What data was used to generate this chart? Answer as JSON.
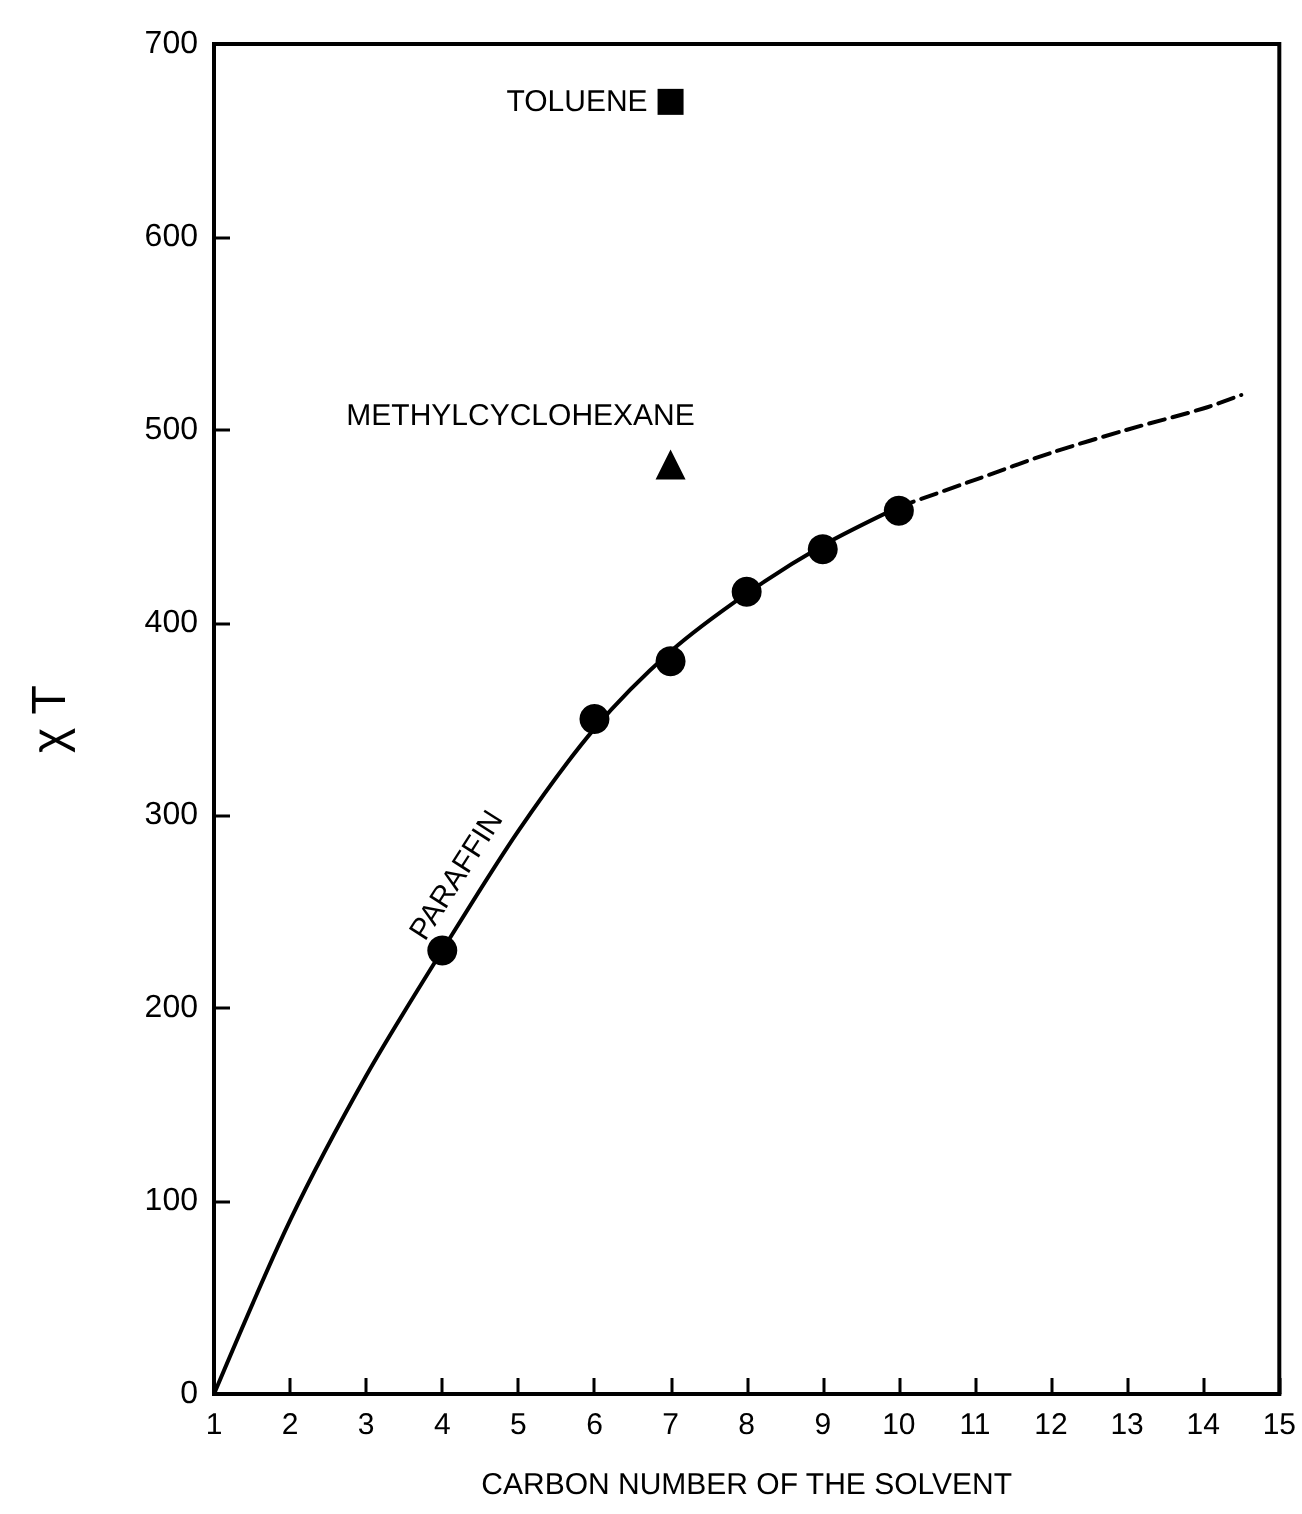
{
  "chart_data": {
    "type": "scatter",
    "xlabel": "CARBON NUMBER OF THE SOLVENT",
    "ylabel": "χ T",
    "xlim": [
      1,
      15
    ],
    "ylim": [
      0,
      700
    ],
    "xticks": [
      1,
      2,
      3,
      4,
      5,
      6,
      7,
      8,
      9,
      10,
      11,
      12,
      13,
      14,
      15
    ],
    "yticks": [
      0,
      100,
      200,
      300,
      400,
      500,
      600,
      700
    ],
    "series": [
      {
        "x": [
          4,
          6,
          7,
          8,
          9,
          10
        ],
        "values": [
          230,
          350,
          380,
          416,
          438,
          458
        ],
        "color": "#000000",
        "marker": "circle"
      },
      {
        "type": "line",
        "name": "PARAFFIN",
        "x": [
          1,
          2,
          3,
          4,
          5,
          6,
          7,
          8,
          9,
          10
        ],
        "values": [
          0,
          90,
          165,
          230,
          292,
          345,
          385,
          415,
          440,
          460
        ],
        "color": "#000000",
        "marker": "none",
        "line_style": "solid"
      },
      {
        "type": "line",
        "x": [
          10,
          11,
          12,
          13,
          14,
          14.5
        ],
        "values": [
          460,
          474,
          488,
          500,
          511,
          518
        ],
        "color": "#000000",
        "marker": "none",
        "line_style": "dashed"
      },
      {
        "name": "METHYLCYCLOHEXANE",
        "x": [
          7
        ],
        "values": [
          482
        ],
        "color": "#000000",
        "marker": "triangle"
      },
      {
        "name": "TOLUENE",
        "x": [
          7
        ],
        "values": [
          670
        ],
        "color": "#000000",
        "marker": "square"
      }
    ]
  }
}
